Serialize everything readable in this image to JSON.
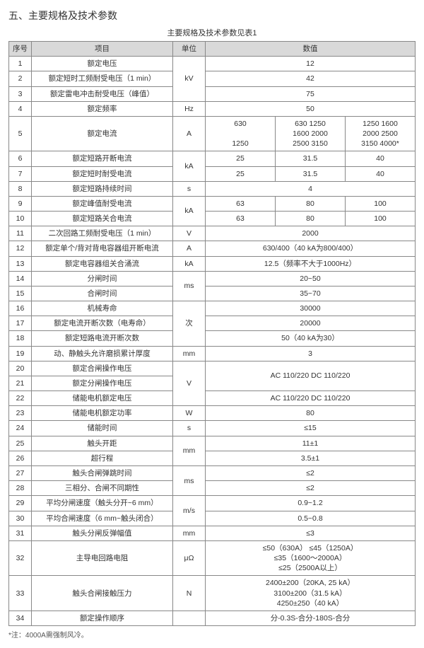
{
  "title": "五、主要规格及技术参数",
  "caption": "主要规格及技术参数见表1",
  "headers": {
    "seq": "序号",
    "item": "项目",
    "unit": "单位",
    "value": "数值"
  },
  "rows": {
    "r1": {
      "seq": "1",
      "item": "额定电压",
      "value": "12"
    },
    "r2": {
      "seq": "2",
      "item": "额定短时工频耐受电压（1 min）",
      "value": "42"
    },
    "r3": {
      "seq": "3",
      "item": "额定雷电冲击耐受电压（峰值）",
      "value": "75"
    },
    "unit_kv": "kV",
    "r4": {
      "seq": "4",
      "item": "额定频率",
      "unit": "Hz",
      "value": "50"
    },
    "r5": {
      "seq": "5",
      "item": "额定电流",
      "unit": "A",
      "c1": "630\n\n1250",
      "c2": "630   1250\n1600  2000\n2500  3150",
      "c3": "1250  1600\n2000  2500\n3150  4000*"
    },
    "r6": {
      "seq": "6",
      "item": "额定短路开断电流",
      "c1": "25",
      "c2": "31.5",
      "c3": "40"
    },
    "r7": {
      "seq": "7",
      "item": "额定短时耐受电流",
      "c1": "25",
      "c2": "31.5",
      "c3": "40"
    },
    "unit_ka67": "kA",
    "r8": {
      "seq": "8",
      "item": "额定短路持续时间",
      "unit": "s",
      "value": "4"
    },
    "r9": {
      "seq": "9",
      "item": "额定峰值耐受电流",
      "c1": "63",
      "c2": "80",
      "c3": "100"
    },
    "r10": {
      "seq": "10",
      "item": "额定短路关合电流",
      "c1": "63",
      "c2": "80",
      "c3": "100"
    },
    "unit_ka910": "kA",
    "r11": {
      "seq": "11",
      "item": "二次回路工频耐受电压（1 min）",
      "unit": "V",
      "value": "2000"
    },
    "r12": {
      "seq": "12",
      "item": "额定单个/背对背电容器组开断电流",
      "unit": "A",
      "value": "630/400（40 kA为800/400）"
    },
    "r13": {
      "seq": "13",
      "item": "额定电容器组关合涌流",
      "unit": "kA",
      "value": "12.5（频率不大于1000Hz）"
    },
    "r14": {
      "seq": "14",
      "item": "分闸时间",
      "value": "20~50"
    },
    "r15": {
      "seq": "15",
      "item": "合闸时间",
      "value": "35~70"
    },
    "unit_ms1415": "ms",
    "r16": {
      "seq": "16",
      "item": "机械寿命",
      "value": "30000"
    },
    "r17": {
      "seq": "17",
      "item": "额定电流开断次数（电寿命）",
      "value": "20000"
    },
    "r18": {
      "seq": "18",
      "item": "额定短路电流开断次数",
      "value": "50（40 kA为30）"
    },
    "unit_ci": "次",
    "r19": {
      "seq": "19",
      "item": "动、静触头允许磨损累计厚度",
      "unit": "mm",
      "value": "3"
    },
    "r20": {
      "seq": "20",
      "item": "额定合闸操作电压"
    },
    "r21": {
      "seq": "21",
      "item": "额定分闸操作电压"
    },
    "val2021": "AC 110/220  DC 110/220",
    "r22": {
      "seq": "22",
      "item": "储能电机额定电压",
      "value": "AC 110/220  DC 110/220"
    },
    "unit_v2022": "V",
    "r23": {
      "seq": "23",
      "item": "储能电机额定功率",
      "unit": "W",
      "value": "80"
    },
    "r24": {
      "seq": "24",
      "item": "储能时间",
      "unit": "s",
      "value": "≤15"
    },
    "r25": {
      "seq": "25",
      "item": "触头开距",
      "value": "11±1"
    },
    "r26": {
      "seq": "26",
      "item": "超行程",
      "value": "3.5±1"
    },
    "unit_mm2526": "mm",
    "r27": {
      "seq": "27",
      "item": "触头合闸弹跳时间",
      "value": "≤2"
    },
    "r28": {
      "seq": "28",
      "item": "三相分、合闸不同期性",
      "value": "≤2"
    },
    "unit_ms2728": "ms",
    "r29": {
      "seq": "29",
      "item": "平均分闸速度（触头分开~6 mm）",
      "value": "0.9~1.2"
    },
    "r30": {
      "seq": "30",
      "item": "平均合闸速度（6 mm~触头闭合）",
      "value": "0.5~0.8"
    },
    "unit_mps": "m/s",
    "r31": {
      "seq": "31",
      "item": "触头分闸反弹幅值",
      "unit": "mm",
      "value": "≤3"
    },
    "r32": {
      "seq": "32",
      "item": "主导电回路电阻",
      "unit": "μΩ",
      "value": "≤50（630A） ≤45（1250A）\n≤35（1600～2000A）\n≤25（2500A以上）"
    },
    "r33": {
      "seq": "33",
      "item": "触头合闸接触压力",
      "unit": "N",
      "value": "2400±200（20KA, 25 kA）\n3100±200（31.5 kA）\n4250±250（40 kA）"
    },
    "r34": {
      "seq": "34",
      "item": "额定操作顺序",
      "unit": "",
      "value": "分-0.3S-合分-180S-合分"
    }
  },
  "note": "*注：4000A需强制风冷。"
}
